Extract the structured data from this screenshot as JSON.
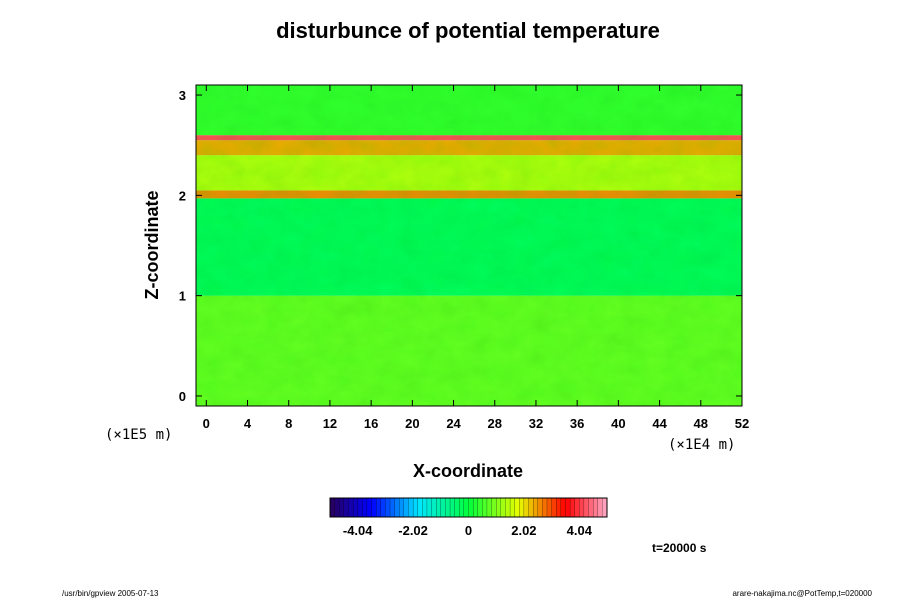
{
  "chart_data": {
    "type": "heatmap",
    "title": "disturbunce of potential temperature",
    "xlabel": "X-coordinate",
    "ylabel": "Z-coordinate",
    "x_unit": "(×1E4 m)",
    "y_unit": "(×1E5 m)",
    "x_ticks": [
      "0",
      "4",
      "8",
      "12",
      "16",
      "20",
      "24",
      "28",
      "32",
      "36",
      "40",
      "44",
      "48",
      "52"
    ],
    "y_ticks": [
      "0",
      "1",
      "2",
      "3"
    ],
    "xlim": [
      -1,
      52
    ],
    "ylim": [
      -0.1,
      3.1
    ],
    "colorbar": {
      "ticks": [
        "-4.04",
        "-2.02",
        "0",
        "2.02",
        "4.04"
      ],
      "range": [
        -5.05,
        5.05
      ],
      "levels": 60
    },
    "field_bands": [
      {
        "z": [
          -0.1,
          1.0
        ],
        "value": 0.8
      },
      {
        "z": [
          1.0,
          1.97
        ],
        "value": -0.3
      },
      {
        "z": [
          1.97,
          2.05
        ],
        "value": 2.6
      },
      {
        "z": [
          2.05,
          2.4
        ],
        "value": 1.4
      },
      {
        "z": [
          2.4,
          2.55
        ],
        "value": 2.4
      },
      {
        "z": [
          2.55,
          2.6
        ],
        "value": 4.2
      },
      {
        "z": [
          2.6,
          3.1
        ],
        "value": 0.4
      }
    ],
    "colors": {
      "low": "#1a0066",
      "mid": "#00ff00",
      "high": "#ff0000"
    },
    "annotation": "t=20000 s"
  },
  "footer": {
    "left": "/usr/bin/gpview 2005-07-13",
    "right": "arare-nakajima.nc@PotTemp,t=020000"
  }
}
